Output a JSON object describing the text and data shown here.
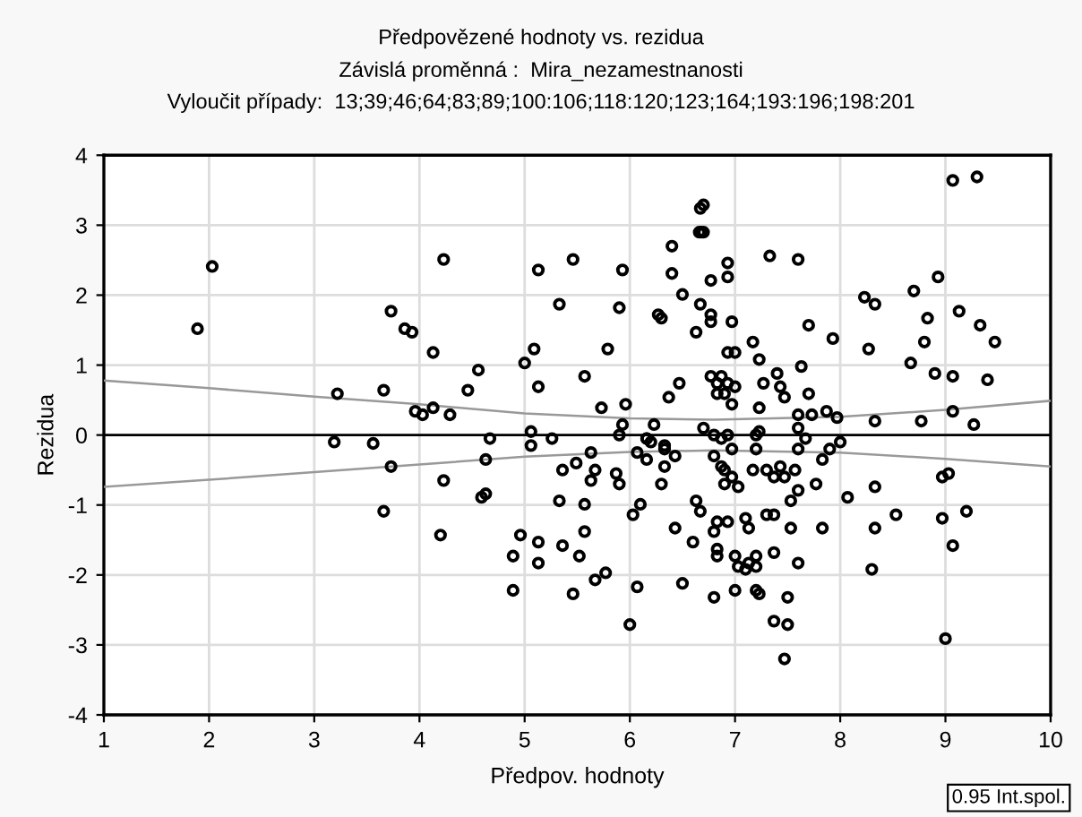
{
  "chart_data": {
    "type": "scatter",
    "title": "Předpovězené hodnoty vs. rezidua",
    "subtitle": "Závislá proměnná :  Mira_nezamestnanosti\nVyloučit případy:  13;39;46;64;83;89;100:106;118:120;123;164;193:196;198:201",
    "xlabel": "Předpov. hodnoty",
    "ylabel": "Rezidua",
    "xlim": [
      1,
      10
    ],
    "ylim": [
      -4,
      4
    ],
    "xticks": [
      1,
      2,
      3,
      4,
      5,
      6,
      7,
      8,
      9,
      10
    ],
    "yticks": [
      -4,
      -3,
      -2,
      -1,
      0,
      1,
      2,
      3,
      4
    ],
    "grid": true,
    "marker": "circle",
    "annotations": [
      "0.95 Int.spol."
    ],
    "ref_lines": [
      {
        "axis": "y",
        "value": 0,
        "label": null,
        "color": "#000000",
        "line_style": "solid"
      }
    ],
    "series": [
      {
        "color": "#000000",
        "x": [
          1.89,
          2.03,
          4.23,
          3.73,
          3.86,
          3.93,
          4.13,
          4.56,
          4.46,
          4.29,
          3.96,
          4.03,
          4.13,
          3.22,
          3.66,
          5.13,
          5.46,
          5.33,
          5.09,
          5.0,
          5.13,
          5.06,
          4.67,
          5.26,
          3.19,
          3.56,
          5.06,
          3.73,
          4.63,
          4.23,
          4.59,
          4.63,
          5.36,
          5.49,
          5.33,
          3.66,
          4.2,
          4.96,
          5.13,
          4.89,
          5.13,
          5.36,
          5.52,
          4.89,
          5.46,
          5.93,
          5.9,
          5.79,
          5.57,
          5.73,
          5.96,
          5.93,
          6.23,
          5.9,
          6.16,
          6.4,
          6.4,
          6.5,
          6.27,
          6.3,
          6.67,
          6.7,
          6.68,
          6.66,
          6.7,
          6.77,
          6.93,
          6.93,
          6.67,
          6.77,
          6.77,
          6.97,
          6.63,
          7.33,
          7.6,
          7.17,
          7.23,
          7.7,
          7.93,
          6.93,
          7.0,
          7.4,
          7.63,
          6.77,
          6.87,
          6.83,
          6.93,
          7.0,
          6.83,
          6.9,
          6.97,
          6.47,
          6.37,
          7.27,
          7.43,
          7.47,
          7.7,
          7.23,
          7.6,
          7.73,
          7.87,
          7.97,
          6.7,
          7.6,
          8.33,
          8.77,
          9.07,
          9.27,
          8.23,
          8.33,
          8.7,
          8.93,
          8.27,
          8.83,
          8.8,
          9.13,
          9.33,
          9.47,
          8.67,
          8.9,
          9.07,
          9.4,
          9.07,
          9.3,
          6.16,
          6.2,
          6.33,
          6.33,
          6.8,
          6.87,
          6.93,
          7.2,
          7.23,
          7.67,
          8.0,
          5.63,
          5.67,
          5.63,
          5.87,
          5.9,
          6.07,
          6.16,
          6.33,
          6.43,
          6.3,
          5.57,
          6.03,
          6.1,
          5.57,
          5.67,
          5.77,
          6.07,
          6.0,
          6.43,
          6.6,
          6.5,
          6.63,
          6.67,
          6.8,
          6.87,
          6.9,
          6.97,
          6.9,
          7.03,
          6.97,
          7.2,
          7.17,
          7.3,
          7.37,
          7.43,
          7.47,
          7.57,
          7.6,
          7.6,
          7.53,
          7.77,
          7.83,
          7.9,
          8.07,
          8.33,
          6.8,
          6.83,
          6.93,
          6.83,
          6.83,
          7.1,
          7.13,
          7.3,
          7.37,
          7.53,
          7.83,
          7.0,
          7.03,
          7.1,
          7.13,
          7.2,
          7.2,
          7.37,
          7.6,
          6.8,
          7.0,
          7.2,
          7.23,
          7.5,
          7.37,
          7.5,
          7.47,
          8.3,
          8.33,
          8.53,
          8.97,
          9.03,
          8.97,
          9.07,
          9.2,
          9.0
        ],
        "values": [
          1.52,
          2.41,
          2.51,
          1.77,
          1.52,
          1.47,
          1.18,
          0.93,
          0.64,
          0.29,
          0.34,
          0.29,
          0.39,
          0.59,
          0.64,
          2.36,
          2.51,
          1.87,
          1.23,
          1.03,
          0.69,
          0.05,
          -0.05,
          -0.05,
          -0.1,
          -0.12,
          -0.15,
          -0.45,
          -0.35,
          -0.65,
          -0.89,
          -0.84,
          -0.5,
          -0.4,
          -0.94,
          -1.09,
          -1.43,
          -1.43,
          -1.53,
          -1.73,
          -1.83,
          -1.58,
          -1.73,
          -2.22,
          -2.27,
          2.36,
          1.82,
          1.23,
          0.84,
          0.39,
          0.44,
          0.15,
          0.15,
          0.0,
          -0.05,
          2.7,
          2.31,
          2.01,
          1.72,
          1.67,
          3.24,
          3.29,
          2.9,
          2.9,
          2.9,
          2.21,
          2.46,
          2.26,
          1.87,
          1.72,
          1.62,
          1.62,
          1.47,
          2.56,
          2.51,
          1.33,
          1.08,
          1.57,
          1.38,
          1.18,
          1.18,
          0.88,
          0.98,
          0.84,
          0.84,
          0.74,
          0.74,
          0.69,
          0.59,
          0.59,
          0.44,
          0.74,
          0.54,
          0.74,
          0.69,
          0.54,
          0.59,
          0.39,
          0.29,
          0.29,
          0.34,
          0.25,
          0.1,
          0.1,
          0.2,
          0.2,
          0.34,
          0.15,
          1.97,
          1.87,
          2.06,
          2.26,
          1.23,
          1.67,
          1.33,
          1.77,
          1.57,
          1.33,
          1.03,
          0.88,
          0.84,
          0.79,
          3.64,
          3.69,
          -0.05,
          -0.1,
          -0.15,
          -0.2,
          0.0,
          -0.05,
          0.0,
          0.0,
          0.05,
          -0.05,
          -0.1,
          -0.25,
          -0.5,
          -0.65,
          -0.55,
          -0.7,
          -0.25,
          -0.35,
          -0.45,
          -0.3,
          -0.7,
          -0.99,
          -1.14,
          -0.99,
          -1.38,
          -2.07,
          -1.97,
          -2.17,
          -2.71,
          -1.33,
          -1.53,
          -2.12,
          -0.94,
          -1.09,
          -0.3,
          -0.45,
          -0.5,
          -0.6,
          -0.7,
          -0.74,
          -0.2,
          -0.2,
          -0.5,
          -0.5,
          -0.6,
          -0.45,
          -0.6,
          -0.5,
          -0.2,
          -0.79,
          -0.94,
          -0.7,
          -0.35,
          -0.2,
          -0.89,
          -0.74,
          -1.38,
          -1.24,
          -1.24,
          -1.63,
          -1.73,
          -1.19,
          -1.33,
          -1.14,
          -1.14,
          -1.33,
          -1.33,
          -1.73,
          -1.88,
          -1.92,
          -1.83,
          -1.88,
          -1.73,
          -1.68,
          -1.83,
          -2.32,
          -2.22,
          -2.22,
          -2.27,
          -2.32,
          -2.66,
          -2.71,
          -3.2,
          -1.92,
          -1.33,
          -1.14,
          -0.6,
          -0.55,
          -1.19,
          -1.58,
          -1.09,
          -2.91
        ]
      },
      {
        "type": "line",
        "color": "#999999",
        "marker": "none",
        "line_style": "solid",
        "x": [
          1,
          2,
          3,
          4,
          5,
          6,
          6.8,
          8,
          9,
          10
        ],
        "values": [
          0.78,
          0.67,
          0.55,
          0.44,
          0.31,
          0.24,
          0.22,
          0.26,
          0.36,
          0.49
        ]
      },
      {
        "type": "line",
        "color": "#999999",
        "marker": "none",
        "line_style": "solid",
        "x": [
          1,
          2,
          3,
          4,
          5,
          6,
          6.8,
          8,
          9,
          10
        ],
        "values": [
          -0.74,
          -0.64,
          -0.53,
          -0.42,
          -0.31,
          -0.24,
          -0.22,
          -0.25,
          -0.34,
          -0.45
        ]
      }
    ]
  }
}
